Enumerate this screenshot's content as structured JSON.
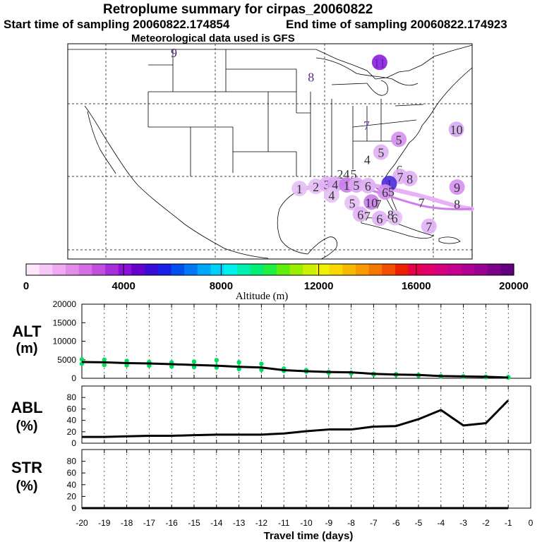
{
  "header": {
    "title": "Retroplume summary for cirpas_20060822",
    "start_label": "Start time of sampling 20060822.174854",
    "end_label": "End time of sampling 20060822.174923",
    "met_label": "Meteorological data used is GFS"
  },
  "map": {
    "labels": [
      {
        "text": "9",
        "lon": -109.5,
        "lat": 48.0,
        "color": "#5a2a80"
      },
      {
        "text": "8",
        "lon": -89.5,
        "lat": 44.6,
        "color": "#5a2a80"
      },
      {
        "text": "11",
        "lon": -79.5,
        "lat": 46.6,
        "color": "#6a1ab0",
        "blob": "#8a1ee0"
      },
      {
        "text": "10",
        "lon": -68.3,
        "lat": 37.2,
        "color": "#333",
        "blob": "#d8a8f0"
      },
      {
        "text": "7",
        "lon": -81.4,
        "lat": 37.8,
        "color": "#7a3aa0"
      },
      {
        "text": "5",
        "lon": -76.7,
        "lat": 35.8,
        "color": "#333",
        "blob": "#d490ee"
      },
      {
        "text": "5",
        "lon": -79.3,
        "lat": 34.0,
        "color": "#333",
        "blob": "#e0b0f4"
      },
      {
        "text": "4",
        "lon": -81.3,
        "lat": 33.0,
        "color": "#333"
      },
      {
        "text": "6",
        "lon": -76.6,
        "lat": 31.6,
        "color": "#333"
      },
      {
        "text": "7",
        "lon": -76.5,
        "lat": 30.6,
        "color": "#333",
        "blob": "#e0b0f4"
      },
      {
        "text": "8",
        "lon": -75.1,
        "lat": 30.3,
        "color": "#333",
        "blob": "#e0b0f4"
      },
      {
        "text": "24",
        "lon": -84.8,
        "lat": 31.0,
        "color": "#333"
      },
      {
        "text": "5",
        "lon": -83.3,
        "lat": 31.0,
        "color": "#333"
      },
      {
        "text": "1",
        "lon": -91.2,
        "lat": 28.9,
        "color": "#333",
        "blob": "#e6bff6"
      },
      {
        "text": "2",
        "lon": -88.8,
        "lat": 29.2,
        "color": "#333",
        "blob": "#e6bff6"
      },
      {
        "text": "3",
        "lon": -87.2,
        "lat": 29.5,
        "color": "#333",
        "blob": "#e0b0f4"
      },
      {
        "text": "4",
        "lon": -86.0,
        "lat": 29.5,
        "color": "#333",
        "blob": "#dca6f2"
      },
      {
        "text": "1",
        "lon": -84.3,
        "lat": 29.4,
        "color": "#333",
        "blob": "#c87cea"
      },
      {
        "text": "5",
        "lon": -82.9,
        "lat": 29.4,
        "color": "#333",
        "blob": "#dca6f2"
      },
      {
        "text": "6",
        "lon": -81.2,
        "lat": 29.3,
        "color": "#333",
        "blob": "#e0b0f4"
      },
      {
        "text": "4",
        "lon": -86.5,
        "lat": 28.0,
        "color": "#333",
        "blob": "#e6bff6"
      },
      {
        "text": "1",
        "lon": -78.1,
        "lat": 29.6,
        "color": "#2a1aa0",
        "blob": "#4a2ad8"
      },
      {
        "text": "6",
        "lon": -78.7,
        "lat": 28.4,
        "color": "#333",
        "blob": "#d490ee"
      },
      {
        "text": "5",
        "lon": -77.8,
        "lat": 28.5,
        "color": "#333"
      },
      {
        "text": "9",
        "lon": -68.2,
        "lat": 29.1,
        "color": "#333",
        "blob": "#d490ee"
      },
      {
        "text": "7",
        "lon": -73.4,
        "lat": 27.0,
        "color": "#333"
      },
      {
        "text": "8",
        "lon": -68.2,
        "lat": 26.8,
        "color": "#333"
      },
      {
        "text": "5",
        "lon": -83.5,
        "lat": 26.9,
        "color": "#333",
        "blob": "#e6bff6"
      },
      {
        "text": "10",
        "lon": -80.7,
        "lat": 27.0,
        "color": "#333",
        "blob": "#c87cea"
      },
      {
        "text": "7",
        "lon": -79.7,
        "lat": 26.8,
        "color": "#333"
      },
      {
        "text": "6",
        "lon": -82.3,
        "lat": 25.3,
        "color": "#333",
        "blob": "#e0b0f4"
      },
      {
        "text": "7",
        "lon": -81.3,
        "lat": 25.1,
        "color": "#333"
      },
      {
        "text": "6",
        "lon": -79.5,
        "lat": 24.7,
        "color": "#333",
        "blob": "#e0b0f4"
      },
      {
        "text": "6",
        "lon": -77.3,
        "lat": 24.8,
        "color": "#333",
        "blob": "#e6bff6"
      },
      {
        "text": "8",
        "lon": -77.9,
        "lat": 25.3,
        "color": "#333"
      },
      {
        "text": "7",
        "lon": -72.3,
        "lat": 23.6,
        "color": "#333",
        "blob": "#e0b0f4"
      }
    ]
  },
  "colorbar": {
    "ticks": [
      "0",
      "4000",
      "8000",
      "12000",
      "16000",
      "20000"
    ],
    "label": "Altitude (m)",
    "colors": [
      "#fbe6fb",
      "#f6c8f6",
      "#efaaf1",
      "#e38cea",
      "#d36ee4",
      "#c04ede",
      "#a72edb",
      "#8c10d8",
      "#6600cc",
      "#3a0cd6",
      "#1a20e6",
      "#0050ee",
      "#0078f8",
      "#00a8fa",
      "#00cffa",
      "#00f0ee",
      "#00f0b0",
      "#00ee78",
      "#20ee40",
      "#60ee10",
      "#9aee00",
      "#ccf000",
      "#f0f000",
      "#f8d800",
      "#f8ba00",
      "#f89a00",
      "#f47800",
      "#f05000",
      "#ec2000",
      "#e8004a",
      "#e0006a",
      "#d4007e",
      "#c4008c",
      "#b00094",
      "#980090",
      "#7c008a",
      "#620080"
    ]
  },
  "chart_data": [
    {
      "type": "line",
      "name": "ALT",
      "title": "ALT",
      "ylabel": "(m)",
      "xlabel": "Travel time (days)",
      "ylim": [
        0,
        20000
      ],
      "yticks": [
        "0",
        "5000",
        "10000",
        "15000",
        "20000"
      ],
      "xlim": [
        -20,
        0
      ],
      "xticks": [
        "-20",
        "-19",
        "-18",
        "-17",
        "-16",
        "-15",
        "-14",
        "-13",
        "-12",
        "-11",
        "-10",
        "-9",
        "-8",
        "-7",
        "-6",
        "-5",
        "-4",
        "-3",
        "-2",
        "-1",
        "0"
      ],
      "x": [
        -20,
        -19,
        -18,
        -17,
        -16,
        -15,
        -14,
        -13,
        -12,
        -11,
        -10,
        -9,
        -8,
        -7,
        -6,
        -5,
        -4,
        -3,
        -2,
        -1
      ],
      "values": [
        4400,
        4300,
        4100,
        4000,
        3800,
        3600,
        3400,
        3100,
        2900,
        2200,
        1900,
        1700,
        1600,
        1200,
        1000,
        900,
        600,
        500,
        400,
        200
      ],
      "scatter": [
        5100,
        3900,
        5000,
        3600,
        4700,
        3500,
        4400,
        3400,
        4300,
        3200,
        4500,
        3000,
        4900,
        2900,
        4300,
        2500,
        3900,
        2300,
        2600,
        2000,
        2200,
        1800,
        1700,
        1500,
        1500,
        1300,
        1200,
        1000,
        1100,
        900,
        900,
        700,
        600,
        500,
        500,
        400,
        400,
        300,
        300,
        200
      ],
      "scatter_color": "#00e060"
    },
    {
      "type": "line",
      "name": "ABL",
      "title": "ABL",
      "ylabel": "(%)",
      "ylim": [
        0,
        100
      ],
      "yticks": [
        "0",
        "20",
        "40",
        "60",
        "80"
      ],
      "x": [
        -20,
        -19,
        -18,
        -17,
        -16,
        -15,
        -14,
        -13,
        -12,
        -11,
        -10,
        -9,
        -8,
        -7,
        -6,
        -5,
        -4,
        -3,
        -2,
        -1
      ],
      "values": [
        11,
        11,
        12,
        13,
        13,
        14,
        15,
        15,
        15,
        17,
        21,
        24,
        24,
        29,
        30,
        42,
        58,
        31,
        35,
        75
      ]
    },
    {
      "type": "line",
      "name": "STR",
      "title": "STR",
      "ylabel": "(%)",
      "ylim": [
        0,
        100
      ],
      "yticks": [
        "0",
        "20",
        "40",
        "60",
        "80"
      ],
      "x": [
        -20,
        -19,
        -18,
        -17,
        -16,
        -15,
        -14,
        -13,
        -12,
        -11,
        -10,
        -9,
        -8,
        -7,
        -6,
        -5,
        -4,
        -3,
        -2,
        -1
      ],
      "values": [
        0,
        0,
        0,
        0,
        0,
        0,
        0,
        0,
        0,
        0,
        0,
        0,
        0,
        0,
        0,
        0,
        0,
        0,
        0,
        0
      ]
    }
  ]
}
